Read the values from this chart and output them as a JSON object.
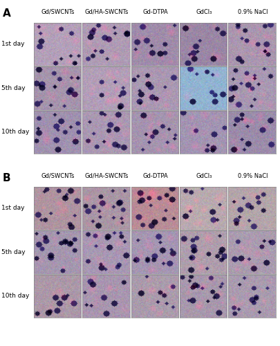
{
  "panel_A_label": "A",
  "panel_B_label": "B",
  "col_labels": [
    "Gd/SWCNTs",
    "Gd/HA-SWCNTs",
    "Gd-DTPA",
    "GdCl₃",
    "0.9% NaCl"
  ],
  "row_labels": [
    "1st day",
    "5th day",
    "10th day"
  ],
  "figure_bg": "#ffffff",
  "border_color": "#888888",
  "label_fontsize": 6.5,
  "panel_label_fontsize": 11,
  "row_label_fontsize": 6.5,
  "col_label_fontsize": 6.0,
  "n_rows": 3,
  "n_cols": 5,
  "colors_A": [
    [
      [
        180,
        160,
        185
      ],
      [
        175,
        155,
        180
      ],
      [
        160,
        140,
        170
      ],
      [
        155,
        135,
        165
      ],
      [
        170,
        150,
        175
      ]
    ],
    [
      [
        165,
        148,
        172
      ],
      [
        178,
        158,
        183
      ],
      [
        170,
        152,
        178
      ],
      [
        145,
        180,
        210
      ],
      [
        168,
        152,
        178
      ]
    ],
    [
      [
        160,
        145,
        175
      ],
      [
        170,
        152,
        178
      ],
      [
        165,
        148,
        175
      ],
      [
        162,
        148,
        178
      ],
      [
        155,
        140,
        170
      ]
    ]
  ],
  "colors_B": [
    [
      [
        175,
        148,
        160
      ],
      [
        170,
        150,
        165
      ],
      [
        185,
        140,
        150
      ],
      [
        185,
        170,
        175
      ],
      [
        180,
        165,
        170
      ]
    ],
    [
      [
        165,
        150,
        175
      ],
      [
        168,
        152,
        178
      ],
      [
        165,
        150,
        178
      ],
      [
        175,
        158,
        172
      ],
      [
        170,
        155,
        175
      ]
    ],
    [
      [
        172,
        152,
        168
      ],
      [
        168,
        150,
        175
      ],
      [
        170,
        155,
        172
      ],
      [
        168,
        152,
        172
      ],
      [
        170,
        155,
        175
      ]
    ]
  ]
}
